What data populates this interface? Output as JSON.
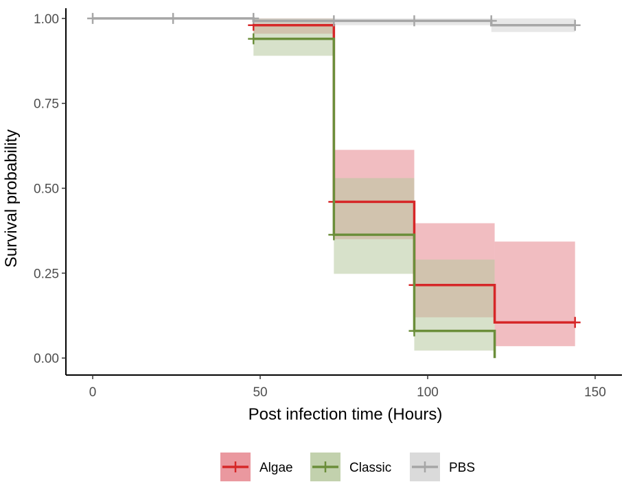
{
  "chart_data": {
    "type": "line",
    "subtype": "kaplan-meier step curves with confidence bands",
    "xlabel": "Post infection time (Hours)",
    "ylabel": "Survival probability",
    "xlim": [
      -8,
      158
    ],
    "ylim": [
      -0.05,
      1.03
    ],
    "x_ticks": [
      0,
      50,
      100,
      150
    ],
    "x_tick_labels": [
      "0",
      "50",
      "100",
      "150"
    ],
    "y_ticks": [
      0,
      0.25,
      0.5,
      0.75,
      1
    ],
    "y_tick_labels": [
      "0.00",
      "0.25",
      "0.50",
      "0.75",
      "1.00"
    ],
    "grid": false,
    "legend_position": "bottom",
    "series": [
      {
        "name": "Algae",
        "color": "#d62728",
        "band_color": "#e6868e",
        "steps": [
          {
            "x0": 48,
            "x1": 72,
            "y": 0.98,
            "lower": 0.955,
            "upper": 1.0
          },
          {
            "x0": 72,
            "x1": 96,
            "y": 0.46,
            "lower": 0.35,
            "upper": 0.613
          },
          {
            "x0": 96,
            "x1": 120,
            "y": 0.215,
            "lower": 0.12,
            "upper": 0.397
          },
          {
            "x0": 120,
            "x1": 144,
            "y": 0.105,
            "lower": 0.035,
            "upper": 0.343
          }
        ],
        "censor_points": [
          {
            "x": 48,
            "y": 0.98
          },
          {
            "x": 72,
            "y": 0.46
          },
          {
            "x": 96,
            "y": 0.215
          },
          {
            "x": 144,
            "y": 0.105
          }
        ]
      },
      {
        "name": "Classic",
        "color": "#6b8e3a",
        "band_color": "#b7c99f",
        "steps": [
          {
            "x0": 48,
            "x1": 72,
            "y": 0.94,
            "lower": 0.89,
            "upper": 1.0
          },
          {
            "x0": 72,
            "x1": 96,
            "y": 0.363,
            "lower": 0.248,
            "upper": 0.53
          },
          {
            "x0": 96,
            "x1": 120,
            "y": 0.08,
            "lower": 0.022,
            "upper": 0.29
          }
        ],
        "final_drop": {
          "x": 120,
          "y": 0.0
        },
        "censor_points": [
          {
            "x": 48,
            "y": 0.94
          },
          {
            "x": 72,
            "y": 0.363
          },
          {
            "x": 96,
            "y": 0.08
          }
        ]
      },
      {
        "name": "PBS",
        "color": "#a6a6a6",
        "band_color": "#d3d3d3",
        "start": {
          "x": 0,
          "y": 1.0
        },
        "steps": [
          {
            "x0": 0,
            "x1": 48,
            "y": 1.0,
            "lower": 1.0,
            "upper": 1.0
          },
          {
            "x0": 48,
            "x1": 119,
            "y": 0.993,
            "lower": 0.98,
            "upper": 1.0
          },
          {
            "x0": 119,
            "x1": 144,
            "y": 0.98,
            "lower": 0.96,
            "upper": 1.0
          }
        ],
        "censor_points": [
          {
            "x": 0,
            "y": 1.0
          },
          {
            "x": 24,
            "y": 1.0
          },
          {
            "x": 48,
            "y": 1.0
          },
          {
            "x": 72,
            "y": 0.993
          },
          {
            "x": 96,
            "y": 0.993
          },
          {
            "x": 119,
            "y": 0.993
          },
          {
            "x": 144,
            "y": 0.98
          }
        ]
      }
    ]
  }
}
